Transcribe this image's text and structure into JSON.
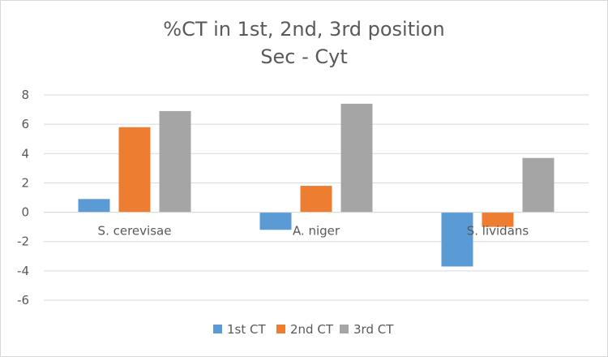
{
  "chart_data": {
    "type": "bar",
    "title": "%CT in 1st, 2nd, 3rd position",
    "subtitle": "Sec - Cyt",
    "categories": [
      "S. cerevisae",
      "A. niger",
      "S. lividans"
    ],
    "series": [
      {
        "name": "1st CT",
        "color": "#5b9bd5",
        "values": [
          0.9,
          -1.2,
          -3.7
        ]
      },
      {
        "name": "2nd CT",
        "color": "#ed7d31",
        "values": [
          5.8,
          1.8,
          -1.0
        ]
      },
      {
        "name": "3rd CT",
        "color": "#a5a5a5",
        "values": [
          6.9,
          7.4,
          3.7
        ]
      }
    ],
    "xlabel": "",
    "ylabel": "",
    "ylim": [
      -6,
      8
    ],
    "yticks": [
      8,
      6,
      4,
      2,
      0,
      -2,
      -4,
      -6
    ],
    "ytick_labels": [
      "8",
      "6",
      "4",
      "2",
      "0",
      "-2",
      "-4",
      "-6"
    ],
    "grid": true,
    "legend_position": "bottom"
  }
}
